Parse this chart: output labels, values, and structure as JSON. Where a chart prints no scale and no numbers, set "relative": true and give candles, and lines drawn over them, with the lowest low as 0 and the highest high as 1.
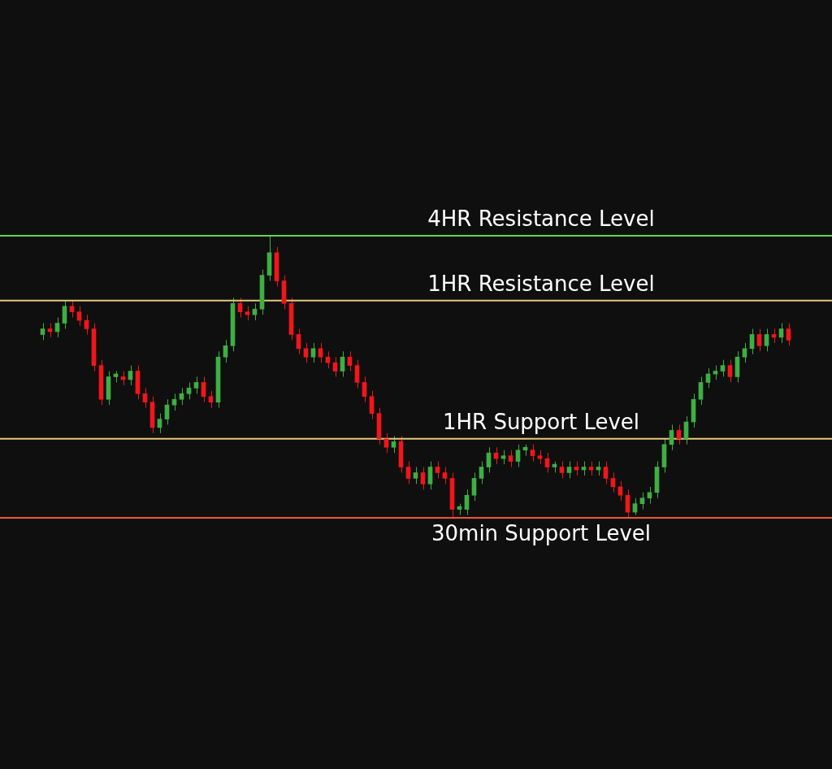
{
  "chart_data": {
    "type": "candlestick",
    "relative": true,
    "categories": [
      null,
      null,
      null,
      null,
      null,
      null,
      null,
      null,
      null,
      null,
      null,
      null,
      null,
      null,
      null,
      null,
      null,
      null,
      null,
      null,
      null,
      null,
      null,
      null,
      null,
      null,
      null,
      null,
      null,
      null,
      null,
      null,
      null,
      null,
      null,
      null,
      null,
      null,
      null,
      null,
      null,
      null,
      null,
      null,
      null,
      null,
      null,
      null,
      null,
      null,
      null,
      null,
      null,
      null,
      null,
      null,
      null,
      null,
      null,
      null,
      null,
      null,
      null,
      null,
      null,
      null,
      null,
      null,
      null,
      null,
      null,
      null,
      null,
      null,
      null,
      null,
      null,
      null,
      null,
      null,
      null,
      null,
      null,
      null,
      null,
      null,
      null,
      null,
      null,
      null,
      null,
      null,
      null,
      null,
      null,
      null,
      null,
      null,
      null,
      null,
      null,
      null,
      null
    ],
    "ohlc": [
      [
        0.65,
        0.69,
        0.63,
        0.67
      ],
      [
        0.67,
        0.69,
        0.64,
        0.66
      ],
      [
        0.66,
        0.71,
        0.64,
        0.69
      ],
      [
        0.69,
        0.77,
        0.67,
        0.75
      ],
      [
        0.75,
        0.77,
        0.71,
        0.73
      ],
      [
        0.73,
        0.75,
        0.68,
        0.7
      ],
      [
        0.7,
        0.72,
        0.65,
        0.67
      ],
      [
        0.67,
        0.69,
        0.52,
        0.54
      ],
      [
        0.54,
        0.56,
        0.4,
        0.42
      ],
      [
        0.42,
        0.52,
        0.4,
        0.5
      ],
      [
        0.5,
        0.52,
        0.48,
        0.51
      ],
      [
        0.5,
        0.52,
        0.47,
        0.49
      ],
      [
        0.49,
        0.54,
        0.47,
        0.52
      ],
      [
        0.52,
        0.54,
        0.42,
        0.44
      ],
      [
        0.44,
        0.46,
        0.39,
        0.41
      ],
      [
        0.41,
        0.43,
        0.3,
        0.32
      ],
      [
        0.32,
        0.37,
        0.3,
        0.35
      ],
      [
        0.35,
        0.42,
        0.33,
        0.4
      ],
      [
        0.4,
        0.44,
        0.38,
        0.42
      ],
      [
        0.42,
        0.46,
        0.4,
        0.44
      ],
      [
        0.44,
        0.48,
        0.42,
        0.46
      ],
      [
        0.46,
        0.5,
        0.44,
        0.48
      ],
      [
        0.48,
        0.5,
        0.41,
        0.43
      ],
      [
        0.43,
        0.45,
        0.39,
        0.41
      ],
      [
        0.41,
        0.59,
        0.39,
        0.57
      ],
      [
        0.57,
        0.63,
        0.55,
        0.61
      ],
      [
        0.61,
        0.78,
        0.59,
        0.76
      ],
      [
        0.76,
        0.78,
        0.71,
        0.73
      ],
      [
        0.73,
        0.75,
        0.7,
        0.72
      ],
      [
        0.72,
        0.76,
        0.7,
        0.74
      ],
      [
        0.74,
        0.88,
        0.72,
        0.86
      ],
      [
        0.86,
        1,
        0.84,
        0.94
      ],
      [
        0.94,
        0.96,
        0.82,
        0.84
      ],
      [
        0.84,
        0.86,
        0.74,
        0.76
      ],
      [
        0.76,
        0.78,
        0.63,
        0.65
      ],
      [
        0.65,
        0.67,
        0.58,
        0.6
      ],
      [
        0.6,
        0.62,
        0.55,
        0.57
      ],
      [
        0.57,
        0.62,
        0.55,
        0.6
      ],
      [
        0.6,
        0.62,
        0.55,
        0.57
      ],
      [
        0.57,
        0.59,
        0.53,
        0.55
      ],
      [
        0.55,
        0.57,
        0.5,
        0.52
      ],
      [
        0.52,
        0.59,
        0.5,
        0.57
      ],
      [
        0.57,
        0.59,
        0.52,
        0.54
      ],
      [
        0.54,
        0.56,
        0.46,
        0.48
      ],
      [
        0.48,
        0.5,
        0.41,
        0.43
      ],
      [
        0.43,
        0.45,
        0.35,
        0.37
      ],
      [
        0.37,
        0.39,
        0.26,
        0.28
      ],
      [
        0.28,
        0.3,
        0.23,
        0.25
      ],
      [
        0.25,
        0.29,
        0.23,
        0.27
      ],
      [
        0.27,
        0.29,
        0.16,
        0.18
      ],
      [
        0.18,
        0.2,
        0.12,
        0.14
      ],
      [
        0.14,
        0.18,
        0.12,
        0.16
      ],
      [
        0.16,
        0.18,
        0.1,
        0.12
      ],
      [
        0.12,
        0.2,
        0.1,
        0.18
      ],
      [
        0.18,
        0.2,
        0.14,
        0.16
      ],
      [
        0.16,
        0.18,
        0.12,
        0.14
      ],
      [
        0.14,
        0.16,
        0,
        0.03
      ],
      [
        0.03,
        0.05,
        0.01,
        0.04
      ],
      [
        0.03,
        0.1,
        0.01,
        0.08
      ],
      [
        0.08,
        0.16,
        0.06,
        0.14
      ],
      [
        0.14,
        0.2,
        0.12,
        0.18
      ],
      [
        0.18,
        0.25,
        0.16,
        0.23
      ],
      [
        0.23,
        0.25,
        0.19,
        0.21
      ],
      [
        0.21,
        0.24,
        0.19,
        0.22
      ],
      [
        0.22,
        0.24,
        0.18,
        0.2
      ],
      [
        0.2,
        0.26,
        0.18,
        0.24
      ],
      [
        0.24,
        0.26,
        0.22,
        0.25
      ],
      [
        0.24,
        0.26,
        0.2,
        0.22
      ],
      [
        0.22,
        0.24,
        0.19,
        0.21
      ],
      [
        0.21,
        0.23,
        0.16,
        0.18
      ],
      [
        0.18,
        0.2,
        0.16,
        0.19
      ],
      [
        0.18,
        0.2,
        0.14,
        0.16
      ],
      [
        0.16,
        0.2,
        0.14,
        0.18
      ],
      [
        0.18,
        0.2,
        0.15,
        0.17
      ],
      [
        0.17,
        0.2,
        0.15,
        0.18
      ],
      [
        0.18,
        0.2,
        0.15,
        0.17
      ],
      [
        0.17,
        0.2,
        0.15,
        0.18
      ],
      [
        0.18,
        0.2,
        0.12,
        0.14
      ],
      [
        0.14,
        0.16,
        0.09,
        0.11
      ],
      [
        0.11,
        0.13,
        0.06,
        0.08
      ],
      [
        0.08,
        0.1,
        0,
        0.02
      ],
      [
        0.02,
        0.07,
        0.01,
        0.05
      ],
      [
        0.05,
        0.09,
        0.03,
        0.07
      ],
      [
        0.07,
        0.11,
        0.05,
        0.09
      ],
      [
        0.09,
        0.2,
        0.07,
        0.18
      ],
      [
        0.18,
        0.28,
        0.16,
        0.26
      ],
      [
        0.26,
        0.33,
        0.24,
        0.31
      ],
      [
        0.31,
        0.33,
        0.26,
        0.28
      ],
      [
        0.28,
        0.36,
        0.26,
        0.34
      ],
      [
        0.34,
        0.44,
        0.32,
        0.42
      ],
      [
        0.42,
        0.5,
        0.4,
        0.48
      ],
      [
        0.48,
        0.53,
        0.46,
        0.51
      ],
      [
        0.51,
        0.54,
        0.49,
        0.52
      ],
      [
        0.52,
        0.56,
        0.5,
        0.54
      ],
      [
        0.54,
        0.56,
        0.48,
        0.5
      ],
      [
        0.5,
        0.59,
        0.48,
        0.57
      ],
      [
        0.57,
        0.62,
        0.55,
        0.6
      ],
      [
        0.6,
        0.67,
        0.58,
        0.65
      ],
      [
        0.65,
        0.67,
        0.59,
        0.61
      ],
      [
        0.61,
        0.67,
        0.59,
        0.65
      ],
      [
        0.65,
        0.67,
        0.62,
        0.64
      ],
      [
        0.64,
        0.69,
        0.62,
        0.67
      ],
      [
        0.67,
        0.69,
        0.61,
        0.63
      ]
    ],
    "ref_lines": [
      {
        "axis": "y",
        "value": 1,
        "label": "4HR Resistance Level",
        "color": "#5fd44a"
      },
      {
        "axis": "y",
        "value": 0.77,
        "label": "1HR Resistance Level",
        "color": "#e8c77a"
      },
      {
        "axis": "y",
        "value": 0.28,
        "label": "1HR Support Level",
        "color": "#e8c77a"
      },
      {
        "axis": "y",
        "value": 0,
        "label": "30min Support Level",
        "color": "#f0582a"
      }
    ]
  }
}
